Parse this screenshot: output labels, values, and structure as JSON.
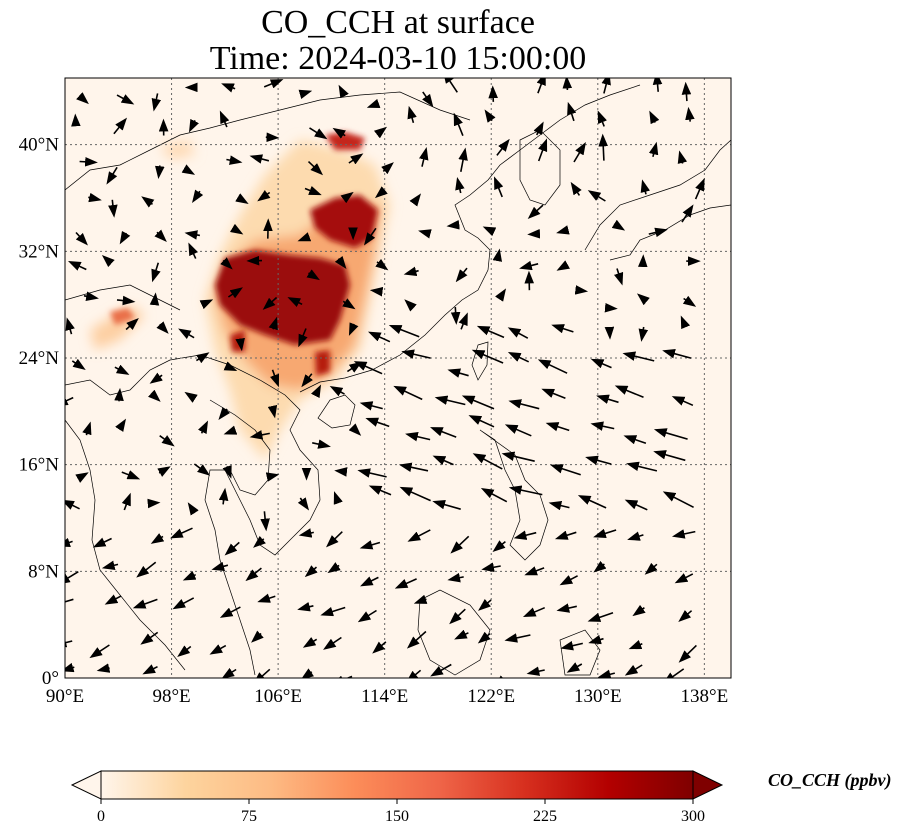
{
  "title": {
    "line1": "CO_CCH at surface",
    "line2": "Time: 2024-03-10 15:00:00"
  },
  "map": {
    "lon_range": [
      90,
      140
    ],
    "lat_range": [
      0,
      45
    ],
    "lon_ticks": [
      90,
      98,
      106,
      114,
      122,
      130,
      138
    ],
    "lat_ticks": [
      0,
      8,
      16,
      24,
      32,
      40
    ],
    "lon_tick_labels": [
      "90°E",
      "98°E",
      "106°E",
      "114°E",
      "122°E",
      "130°E",
      "138°E"
    ],
    "lat_tick_labels": [
      "0°",
      "8°N",
      "16°N",
      "24°N",
      "32°N",
      "40°N"
    ],
    "gridlines": true,
    "background_color": "#fff5eb"
  },
  "colorbar": {
    "label": "CO_CCH (ppbv)",
    "ticks": [
      0,
      75,
      150,
      225,
      300
    ],
    "tick_labels": [
      "0",
      "75",
      "150",
      "225",
      "300"
    ],
    "range": [
      0,
      300
    ],
    "colormap": "OrRd",
    "extend": "both",
    "colors": [
      "#fff5eb",
      "#fdd49e",
      "#fdbb84",
      "#fc8d59",
      "#ef6548",
      "#d7301f",
      "#b30000",
      "#7f0000"
    ]
  }
}
